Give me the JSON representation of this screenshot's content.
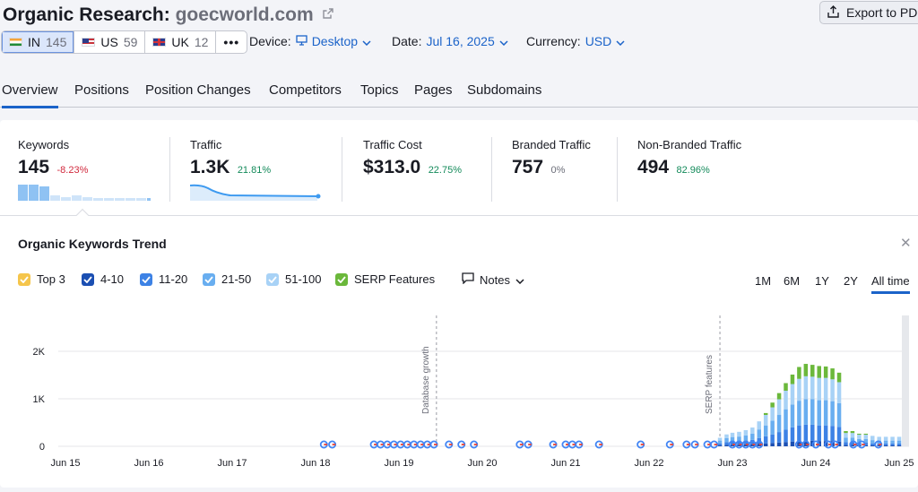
{
  "header": {
    "title_prefix": "Organic Research:",
    "domain": "goecworld.com",
    "export_label": "Export to PDF"
  },
  "databases": [
    {
      "code": "IN",
      "count": "145",
      "active": true
    },
    {
      "code": "US",
      "count": "59",
      "active": false
    },
    {
      "code": "UK",
      "count": "12",
      "active": false
    }
  ],
  "more_label": "•••",
  "selectors": {
    "device_label": "Device:",
    "device_value": "Desktop",
    "date_label": "Date:",
    "date_value": "Jul 16, 2025",
    "currency_label": "Currency:",
    "currency_value": "USD"
  },
  "tabs": [
    "Overview",
    "Positions",
    "Position Changes",
    "Competitors",
    "Topics",
    "Pages",
    "Subdomains"
  ],
  "metrics": {
    "keywords": {
      "label": "Keywords",
      "value": "145",
      "delta": "-8.23%"
    },
    "traffic": {
      "label": "Traffic",
      "value": "1.3K",
      "delta": "21.81%"
    },
    "traffic_cost": {
      "label": "Traffic Cost",
      "value": "$313.0",
      "delta": "22.75%"
    },
    "branded": {
      "label": "Branded Traffic",
      "value": "757",
      "delta": "0%"
    },
    "non_branded": {
      "label": "Non-Branded Traffic",
      "value": "494",
      "delta": "82.96%"
    }
  },
  "trend": {
    "title": "Organic Keywords Trend",
    "legend": [
      {
        "label": "Top 3",
        "color": "#f5c54b"
      },
      {
        "label": "4-10",
        "color": "#1b4fb2"
      },
      {
        "label": "11-20",
        "color": "#3d82e5"
      },
      {
        "label": "21-50",
        "color": "#69aef0"
      },
      {
        "label": "51-100",
        "color": "#a8d2f6"
      },
      {
        "label": "SERP Features",
        "color": "#6bb83b"
      }
    ],
    "notes_label": "Notes",
    "ranges": [
      "1M",
      "6M",
      "1Y",
      "2Y",
      "All time"
    ],
    "active_range": "All time"
  },
  "chart_data": {
    "type": "bar",
    "stacked": true,
    "x_tick_labels": [
      "Jun 15",
      "Jun 16",
      "Jun 17",
      "Jun 18",
      "Jun 19",
      "Jun 20",
      "Jun 21",
      "Jun 22",
      "Jun 23",
      "Jun 24",
      "Jun 25"
    ],
    "y_tick_labels": [
      "0",
      "1K",
      "2K"
    ],
    "ylim": [
      0,
      2300
    ],
    "grid": true,
    "annotations": [
      {
        "label": "Database growth",
        "x": 19.45
      },
      {
        "label": "SERP features",
        "x": 22.85
      }
    ],
    "series_names": [
      "4-10",
      "11-20",
      "21-50",
      "51-100",
      "SERP Features"
    ],
    "series_colors": [
      "#1b4fb2",
      "#3d82e5",
      "#69aef0",
      "#a8d2f6",
      "#6bb83b"
    ],
    "x": [
      22.85,
      22.93,
      23.0,
      23.08,
      23.16,
      23.24,
      23.32,
      23.4,
      23.48,
      23.56,
      23.64,
      23.72,
      23.8,
      23.88,
      23.96,
      24.04,
      24.12,
      24.2,
      24.28,
      24.36,
      24.44,
      24.52,
      24.6,
      24.68,
      24.76,
      24.84,
      24.92,
      25.0
    ],
    "series_values": [
      [
        20,
        30,
        35,
        35,
        40,
        45,
        55,
        60,
        70,
        80,
        90,
        100,
        110,
        115,
        115,
        110,
        110,
        110,
        100,
        30,
        30,
        25,
        25,
        20,
        20,
        20,
        20,
        20
      ],
      [
        40,
        60,
        70,
        70,
        80,
        90,
        120,
        150,
        180,
        220,
        260,
        300,
        330,
        340,
        340,
        330,
        330,
        320,
        310,
        60,
        60,
        50,
        50,
        40,
        40,
        40,
        40,
        40
      ],
      [
        60,
        80,
        90,
        100,
        110,
        130,
        180,
        230,
        290,
        360,
        430,
        480,
        520,
        540,
        540,
        530,
        530,
        520,
        500,
        90,
        90,
        80,
        80,
        70,
        60,
        60,
        60,
        60
      ],
      [
        60,
        80,
        90,
        100,
        110,
        130,
        170,
        220,
        280,
        330,
        390,
        430,
        460,
        480,
        470,
        470,
        470,
        460,
        440,
        100,
        100,
        90,
        90,
        90,
        80,
        80,
        80,
        80
      ],
      [
        0,
        0,
        0,
        0,
        0,
        0,
        0,
        40,
        100,
        130,
        160,
        200,
        250,
        260,
        250,
        250,
        240,
        230,
        200,
        40,
        40,
        20,
        20,
        0,
        0,
        0,
        0,
        0
      ]
    ],
    "serp_markers_x": [
      18.1,
      18.2,
      18.7,
      18.78,
      18.86,
      18.94,
      19.02,
      19.1,
      19.18,
      19.26,
      19.34,
      19.42,
      19.6,
      19.75,
      19.9,
      20.45,
      20.55,
      20.85,
      21.0,
      21.08,
      21.16,
      21.4,
      21.9,
      22.25,
      22.45,
      22.55,
      22.7,
      22.78,
      23.0,
      23.08,
      23.16,
      23.24,
      23.32,
      23.8,
      23.88,
      24.0,
      24.15,
      24.23,
      24.45,
      24.55,
      24.75
    ]
  }
}
